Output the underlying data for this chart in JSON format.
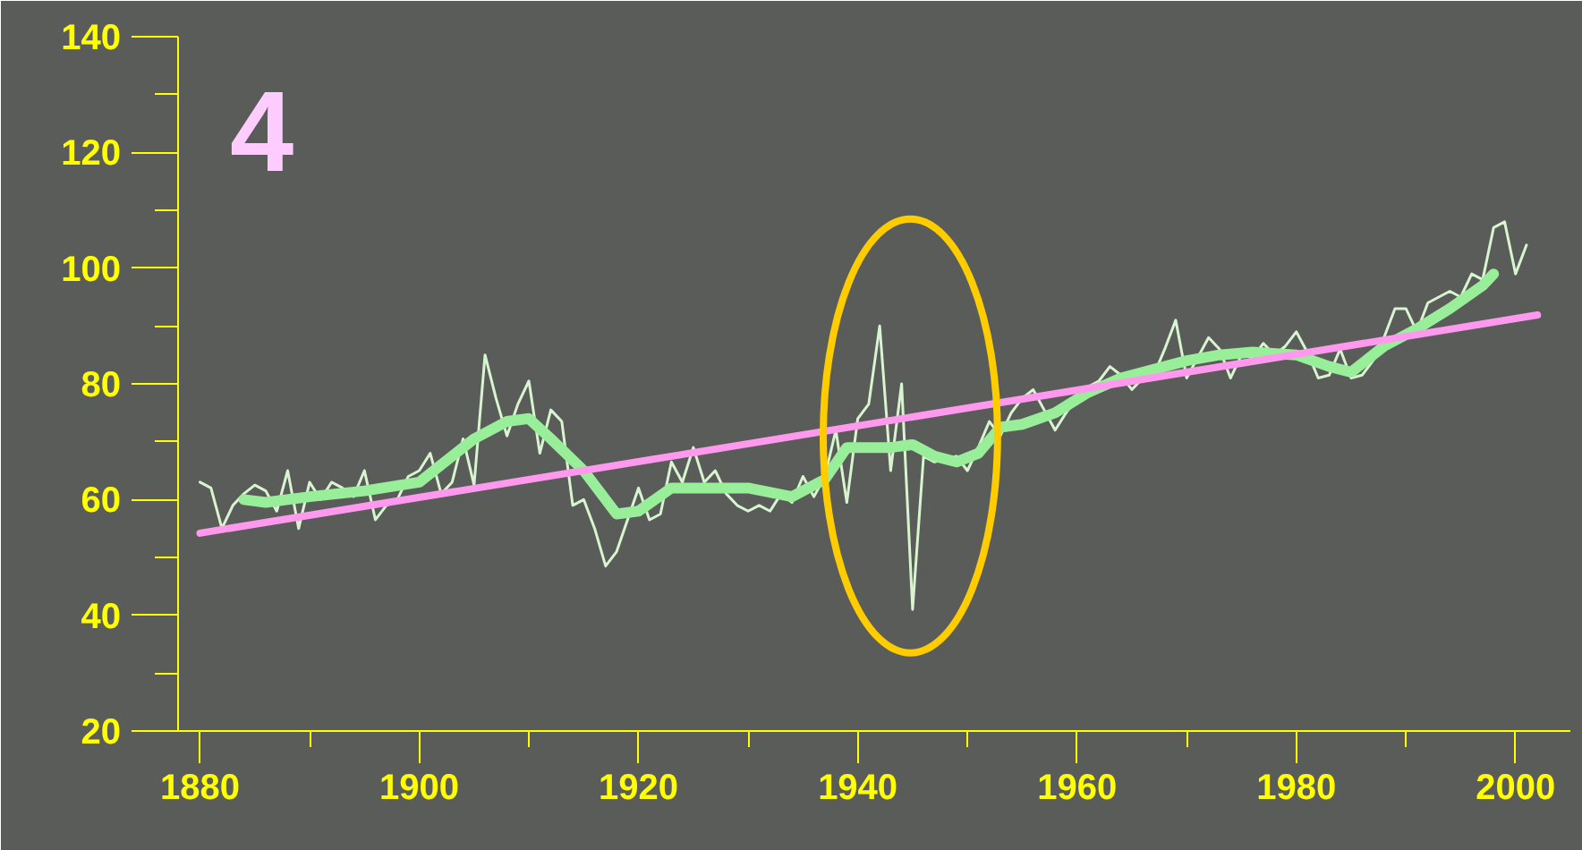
{
  "chart_data": {
    "type": "line",
    "annotations": [
      "4"
    ],
    "xlim": [
      1878,
      2005
    ],
    "ylim": [
      20,
      140
    ],
    "xticks": [
      1880,
      {
        "value": 1890,
        "label": null
      },
      1900,
      {
        "value": 1910,
        "label": null
      },
      1920,
      {
        "value": 1930,
        "label": null
      },
      1940,
      {
        "value": 1950,
        "label": null
      },
      1960,
      {
        "value": 1970,
        "label": null
      },
      1980,
      {
        "value": 1990,
        "label": null
      },
      2000
    ],
    "yticks": [
      20,
      {
        "value": 30,
        "label": null
      },
      40,
      {
        "value": 50,
        "label": null
      },
      60,
      {
        "value": 70,
        "label": null
      },
      80,
      {
        "value": 90,
        "label": null
      },
      100,
      {
        "value": 110,
        "label": null
      },
      120,
      {
        "value": 130,
        "label": null
      },
      140
    ],
    "grid": false,
    "series": [
      {
        "color": "#d8f5d0",
        "x": [
          1880,
          1881,
          1882,
          1883,
          1884,
          1885,
          1886,
          1887,
          1888,
          1889,
          1890,
          1891,
          1892,
          1893,
          1894,
          1895,
          1896,
          1897,
          1898,
          1899,
          1900,
          1901,
          1902,
          1903,
          1904,
          1905,
          1906,
          1907,
          1908,
          1909,
          1910,
          1911,
          1912,
          1913,
          1914,
          1915,
          1916,
          1917,
          1918,
          1919,
          1920,
          1921,
          1922,
          1923,
          1924,
          1925,
          1926,
          1927,
          1928,
          1929,
          1930,
          1931,
          1932,
          1933,
          1934,
          1935,
          1936,
          1937,
          1938,
          1939,
          1940,
          1941,
          1942,
          1943,
          1944,
          1945,
          1946,
          1947,
          1948,
          1949,
          1950,
          1951,
          1952,
          1953,
          1954,
          1955,
          1956,
          1957,
          1958,
          1959,
          1960,
          1961,
          1962,
          1963,
          1964,
          1965,
          1966,
          1967,
          1968,
          1969,
          1970,
          1971,
          1972,
          1973,
          1974,
          1975,
          1976,
          1977,
          1978,
          1979,
          1980,
          1981,
          1982,
          1983,
          1984,
          1985,
          1986,
          1987,
          1988,
          1989,
          1990,
          1991,
          1992,
          1993,
          1994,
          1995,
          1996,
          1997,
          1998,
          1999,
          2000,
          2001
        ],
        "values": [
          63,
          62,
          55,
          59,
          61,
          62.5,
          61.5,
          58,
          65,
          55,
          63,
          60,
          63,
          62,
          60.5,
          65,
          56.5,
          59,
          60,
          64,
          65,
          68,
          61,
          63,
          70.5,
          62.5,
          85,
          77.5,
          71,
          76.5,
          80.5,
          68,
          75.5,
          73.5,
          59,
          60,
          55,
          48.5,
          51,
          56.5,
          62,
          56.5,
          57.5,
          66.5,
          63,
          69,
          63,
          65,
          61,
          59,
          58,
          59,
          58,
          61,
          59.5,
          64,
          60.5,
          64,
          72,
          59.5,
          74,
          76.5,
          90,
          65,
          80,
          41,
          67.5,
          66.5,
          67,
          67.5,
          65,
          69,
          73.5,
          71,
          75,
          77.5,
          79,
          75.5,
          72,
          75,
          77.5,
          79.5,
          80.5,
          83,
          81.5,
          79,
          81,
          81.5,
          86,
          91,
          81,
          84.5,
          88,
          86,
          81,
          85,
          84.5,
          87,
          85,
          86.5,
          89,
          85.5,
          81,
          81.5,
          86,
          81,
          81.5,
          84,
          88,
          93,
          93,
          89,
          94,
          95,
          96,
          95,
          99,
          98,
          107,
          108,
          99,
          104
        ]
      },
      {
        "color": "#99ee99",
        "x": [
          1884,
          1886,
          1890,
          1895,
          1900,
          1902,
          1905,
          1908,
          1910,
          1912,
          1915,
          1918,
          1920,
          1923,
          1925,
          1930,
          1934,
          1937,
          1939,
          1941,
          1943,
          1945,
          1947,
          1949,
          1951,
          1953,
          1955,
          1958,
          1961,
          1964,
          1967,
          1970,
          1973,
          1976,
          1980,
          1983,
          1985,
          1988,
          1991,
          1994,
          1997,
          1998
        ],
        "values": [
          60,
          59.5,
          60.5,
          61.5,
          63,
          66,
          70.5,
          73.5,
          74,
          70.5,
          65,
          57.5,
          58,
          62,
          62,
          62,
          60.5,
          63.5,
          69,
          69,
          69,
          69.5,
          67.5,
          66.5,
          68,
          72.5,
          73,
          75,
          78.5,
          81,
          82.5,
          84,
          85,
          85.5,
          85,
          83,
          82,
          86.5,
          89.5,
          93,
          97,
          99
        ]
      },
      {
        "color": "#ff99ee",
        "x": [
          1880,
          2002
        ],
        "values": [
          54.2,
          91.9
        ]
      }
    ]
  }
}
